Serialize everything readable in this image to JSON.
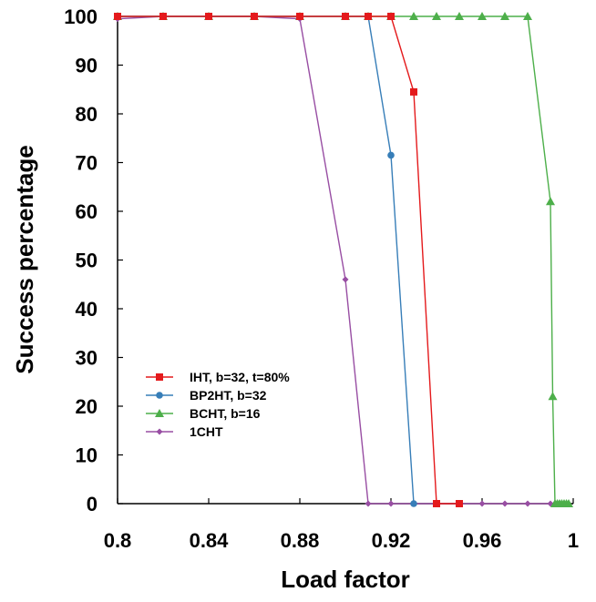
{
  "chart_data": {
    "type": "line",
    "title": "",
    "xlabel": "Load factor",
    "ylabel": "Success percentage",
    "xlim": [
      0.8,
      1.0
    ],
    "ylim": [
      0,
      100
    ],
    "x_ticks": [
      0.8,
      0.84,
      0.88,
      0.92,
      0.96,
      1
    ],
    "x_tick_labels": [
      "0.8",
      "0.84",
      "0.88",
      "0.92",
      "0.96",
      "1"
    ],
    "y_ticks": [
      0,
      10,
      20,
      30,
      40,
      50,
      60,
      70,
      80,
      90,
      100
    ],
    "y_tick_labels": [
      "0",
      "10",
      "20",
      "30",
      "40",
      "50",
      "60",
      "70",
      "80",
      "90",
      "100"
    ],
    "grid": false,
    "legend_position": "lower-left",
    "series": [
      {
        "name": "IHT, b=32, t=80%",
        "color": "#e41a1c",
        "marker": "square",
        "x": [
          0.8,
          0.82,
          0.84,
          0.86,
          0.88,
          0.9,
          0.91,
          0.92,
          0.93,
          0.94,
          0.95
        ],
        "y": [
          100,
          100,
          100,
          100,
          100,
          100,
          100,
          100,
          84.5,
          0,
          0
        ]
      },
      {
        "name": "BP2HT, b=32",
        "color": "#377eb8",
        "marker": "circle",
        "x": [
          0.8,
          0.82,
          0.84,
          0.86,
          0.88,
          0.9,
          0.91,
          0.92,
          0.93
        ],
        "y": [
          100,
          100,
          100,
          100,
          100,
          100,
          100,
          71.5,
          0
        ]
      },
      {
        "name": "BCHT, b=16",
        "color": "#4daf4a",
        "marker": "triangle",
        "x": [
          0.8,
          0.82,
          0.84,
          0.86,
          0.88,
          0.9,
          0.91,
          0.92,
          0.93,
          0.94,
          0.95,
          0.96,
          0.97,
          0.98,
          0.99,
          0.991,
          0.992,
          0.993,
          0.994,
          0.995,
          0.996,
          0.997,
          0.998
        ],
        "y": [
          100,
          100,
          100,
          100,
          100,
          100,
          100,
          100,
          100,
          100,
          100,
          100,
          100,
          100,
          62,
          22,
          0,
          0,
          0,
          0,
          0,
          0,
          0
        ]
      },
      {
        "name": "1CHT",
        "color": "#984ea3",
        "marker": "diamond",
        "x": [
          0.8,
          0.82,
          0.84,
          0.86,
          0.88,
          0.9,
          0.91,
          0.92,
          0.93,
          0.94,
          0.95,
          0.96,
          0.97,
          0.98,
          0.99,
          0.992,
          0.994,
          0.996
        ],
        "y": [
          99.5,
          100,
          100,
          100,
          99.5,
          46,
          0,
          0,
          0,
          0,
          0,
          0,
          0,
          0,
          0,
          0,
          0,
          0
        ]
      }
    ]
  }
}
